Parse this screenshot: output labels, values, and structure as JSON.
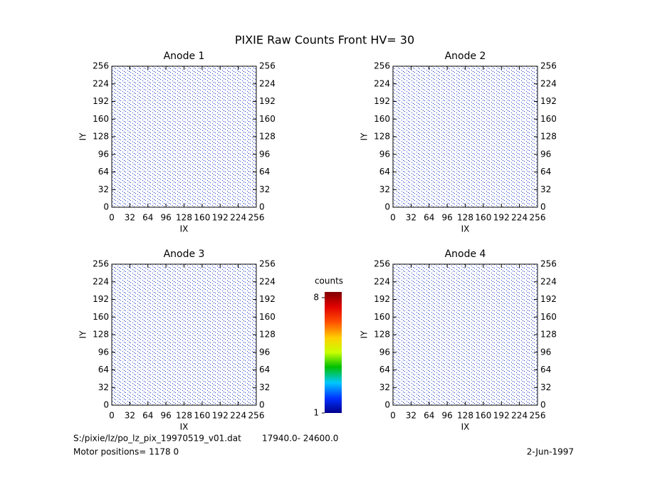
{
  "title": "PIXIE Raw Counts Front HV= 30",
  "chart_data": [
    {
      "type": "heatmap",
      "title": "Anode 1",
      "x_label": "IX",
      "y_label": "IY",
      "xlim": [
        0,
        256
      ],
      "ylim": [
        0,
        256
      ],
      "xticks": [
        0,
        32,
        64,
        96,
        128,
        160,
        192,
        224,
        256
      ],
      "yticks": [
        0,
        32,
        64,
        96,
        128,
        160,
        192,
        224,
        256
      ]
    },
    {
      "type": "heatmap",
      "title": "Anode 2",
      "x_label": "IX",
      "y_label": "IY",
      "xlim": [
        0,
        256
      ],
      "ylim": [
        0,
        256
      ],
      "xticks": [
        0,
        32,
        64,
        96,
        128,
        160,
        192,
        224,
        256
      ],
      "yticks": [
        0,
        32,
        64,
        96,
        128,
        160,
        192,
        224,
        256
      ]
    },
    {
      "type": "heatmap",
      "title": "Anode 3",
      "x_label": "IX",
      "y_label": "IY",
      "xlim": [
        0,
        256
      ],
      "ylim": [
        0,
        256
      ],
      "xticks": [
        0,
        32,
        64,
        96,
        128,
        160,
        192,
        224,
        256
      ],
      "yticks": [
        0,
        32,
        64,
        96,
        128,
        160,
        192,
        224,
        256
      ]
    },
    {
      "type": "heatmap",
      "title": "Anode 4",
      "x_label": "IX",
      "y_label": "IY",
      "xlim": [
        0,
        256
      ],
      "ylim": [
        0,
        256
      ],
      "xticks": [
        0,
        32,
        64,
        96,
        128,
        160,
        192,
        224,
        256
      ],
      "yticks": [
        0,
        32,
        64,
        96,
        128,
        160,
        192,
        224,
        256
      ]
    }
  ],
  "colorbar": {
    "label": "counts",
    "range": [
      1,
      8
    ],
    "ticks": [
      1,
      8
    ]
  },
  "footer": {
    "file": "S:/pixie/lz/po_lz_pix_19970519_v01.dat",
    "range": "17940.0- 24600.0",
    "motor": "Motor positions= 1178 0",
    "date": "2-Jun-1997"
  }
}
